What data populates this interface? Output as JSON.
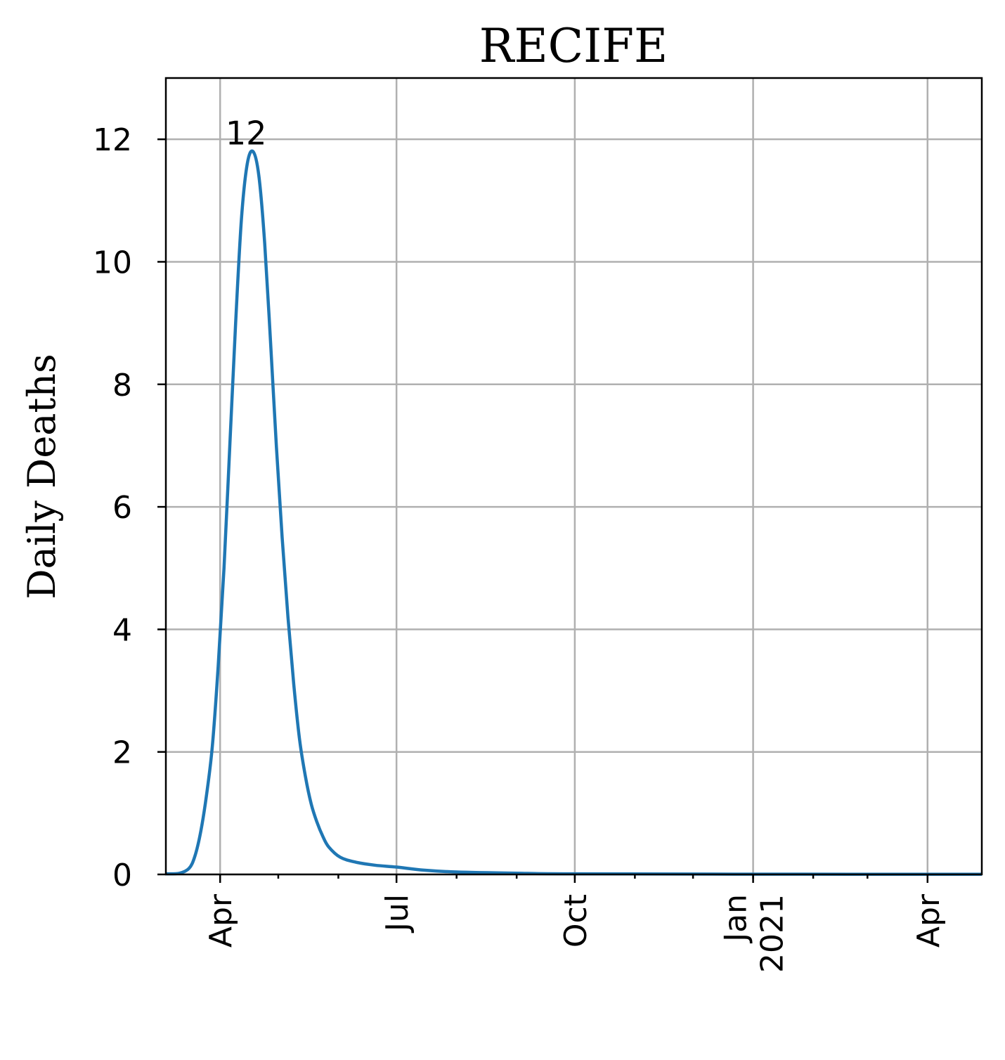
{
  "chart_data": {
    "type": "line",
    "title": "RECIFE",
    "xlabel": "",
    "ylabel": "Daily Deaths",
    "ylim": [
      0,
      13
    ],
    "xlim": [
      "2020-03-04",
      "2021-04-29"
    ],
    "grid": true,
    "y_ticks": [
      0,
      2,
      4,
      6,
      8,
      10,
      12
    ],
    "x_ticks": [
      {
        "date": "2020-04-01",
        "lines": [
          "Apr"
        ]
      },
      {
        "date": "2020-07-01",
        "lines": [
          "Jul"
        ]
      },
      {
        "date": "2020-10-01",
        "lines": [
          "Oct"
        ]
      },
      {
        "date": "2021-01-01",
        "lines": [
          "Jan",
          "2021"
        ]
      },
      {
        "date": "2021-04-01",
        "lines": [
          "Apr"
        ]
      }
    ],
    "series": [
      {
        "color": "#1f77b4",
        "points": [
          [
            "2020-03-04",
            0.01
          ],
          [
            "2020-03-11",
            0.02
          ],
          [
            "2020-03-16",
            0.1
          ],
          [
            "2020-03-19",
            0.3
          ],
          [
            "2020-03-22",
            0.7
          ],
          [
            "2020-03-25",
            1.3
          ],
          [
            "2020-03-28",
            2.1
          ],
          [
            "2020-03-31",
            3.4
          ],
          [
            "2020-04-03",
            5.0
          ],
          [
            "2020-04-06",
            7.0
          ],
          [
            "2020-04-09",
            9.0
          ],
          [
            "2020-04-12",
            10.7
          ],
          [
            "2020-04-15",
            11.6
          ],
          [
            "2020-04-18",
            11.8
          ],
          [
            "2020-04-21",
            11.4
          ],
          [
            "2020-04-24",
            10.3
          ],
          [
            "2020-04-27",
            8.7
          ],
          [
            "2020-04-30",
            7.0
          ],
          [
            "2020-05-03",
            5.5
          ],
          [
            "2020-05-06",
            4.2
          ],
          [
            "2020-05-09",
            3.1
          ],
          [
            "2020-05-12",
            2.2
          ],
          [
            "2020-05-15",
            1.6
          ],
          [
            "2020-05-18",
            1.15
          ],
          [
            "2020-05-21",
            0.85
          ],
          [
            "2020-05-24",
            0.62
          ],
          [
            "2020-05-27",
            0.45
          ],
          [
            "2020-06-02",
            0.28
          ],
          [
            "2020-06-10",
            0.2
          ],
          [
            "2020-06-20",
            0.15
          ],
          [
            "2020-07-01",
            0.12
          ],
          [
            "2020-07-15",
            0.07
          ],
          [
            "2020-08-01",
            0.04
          ],
          [
            "2020-09-01",
            0.02
          ],
          [
            "2020-10-01",
            0.01
          ],
          [
            "2021-01-01",
            0.004
          ],
          [
            "2021-04-29",
            0.003
          ]
        ]
      }
    ],
    "annotations": [
      {
        "text": "12",
        "x": "2020-04-18",
        "y": 11.8
      }
    ]
  }
}
